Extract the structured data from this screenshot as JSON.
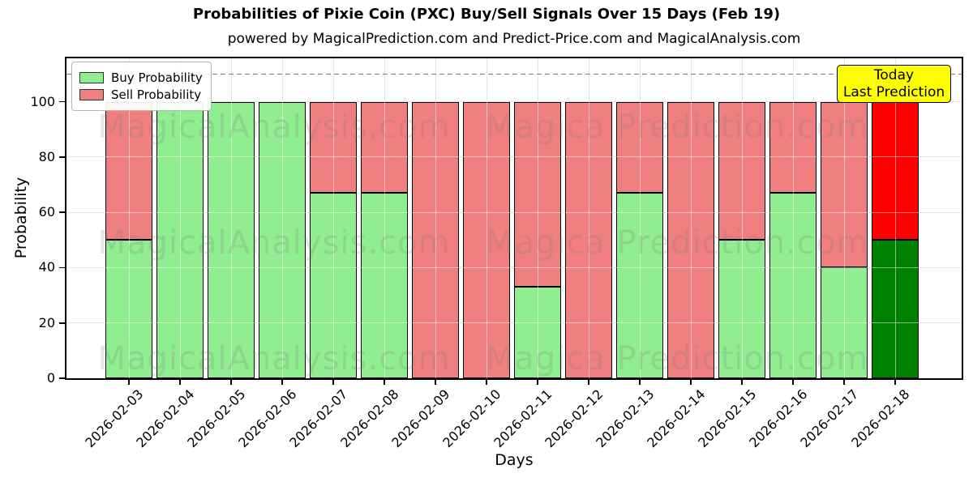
{
  "chart_data": {
    "type": "bar",
    "stacked": true,
    "title": "Probabilities of Pixie Coin (PXC) Buy/Sell Signals Over 15 Days (Feb 19)",
    "subtitle": "powered by MagicalPrediction.com and Predict-Price.com and MagicalAnalysis.com",
    "xlabel": "Days",
    "ylabel": "Probability",
    "ylim": [
      0,
      115.7
    ],
    "yticks": [
      0,
      20,
      40,
      60,
      80,
      100
    ],
    "grid": true,
    "legend_position": "upper left",
    "threshold_line_y": 110,
    "threshold_line_style": "dashed",
    "categories": [
      "2026-02-03",
      "2026-02-04",
      "2026-02-05",
      "2026-02-06",
      "2026-02-07",
      "2026-02-08",
      "2026-02-09",
      "2026-02-10",
      "2026-02-11",
      "2026-02-12",
      "2026-02-13",
      "2026-02-14",
      "2026-02-15",
      "2026-02-16",
      "2026-02-17",
      "2026-02-18"
    ],
    "series": [
      {
        "name": "Buy Probability",
        "color": "#90ee90",
        "values": [
          50,
          100,
          100,
          100,
          67,
          67,
          0,
          0,
          33,
          0,
          67,
          0,
          50,
          67,
          40,
          50
        ]
      },
      {
        "name": "Sell Probability",
        "color": "#f08080",
        "values": [
          50,
          0,
          0,
          0,
          33,
          33,
          100,
          100,
          67,
          100,
          33,
          100,
          50,
          33,
          60,
          50
        ]
      }
    ],
    "today": {
      "index": 15,
      "buy_color": "#008000",
      "sell_color": "#ff0000"
    }
  },
  "legend": {
    "items": [
      {
        "label": "Buy Probability",
        "color": "#90ee90"
      },
      {
        "label": "Sell Probability",
        "color": "#f08080"
      }
    ]
  },
  "annotation": {
    "line1": "Today",
    "line2": "Last Prediction",
    "bg_color": "#ffff00"
  },
  "watermark": {
    "left": "MagicalAnalysis.com",
    "right": "Magica Prediction.com"
  },
  "colors": {
    "buy": "#90ee90",
    "sell": "#f08080",
    "today_buy": "#008000",
    "today_sell": "#ff0000",
    "annotation_bg": "#ffff00",
    "grid": "#cfcfcf",
    "dashed_line": "#7f7f7f"
  }
}
